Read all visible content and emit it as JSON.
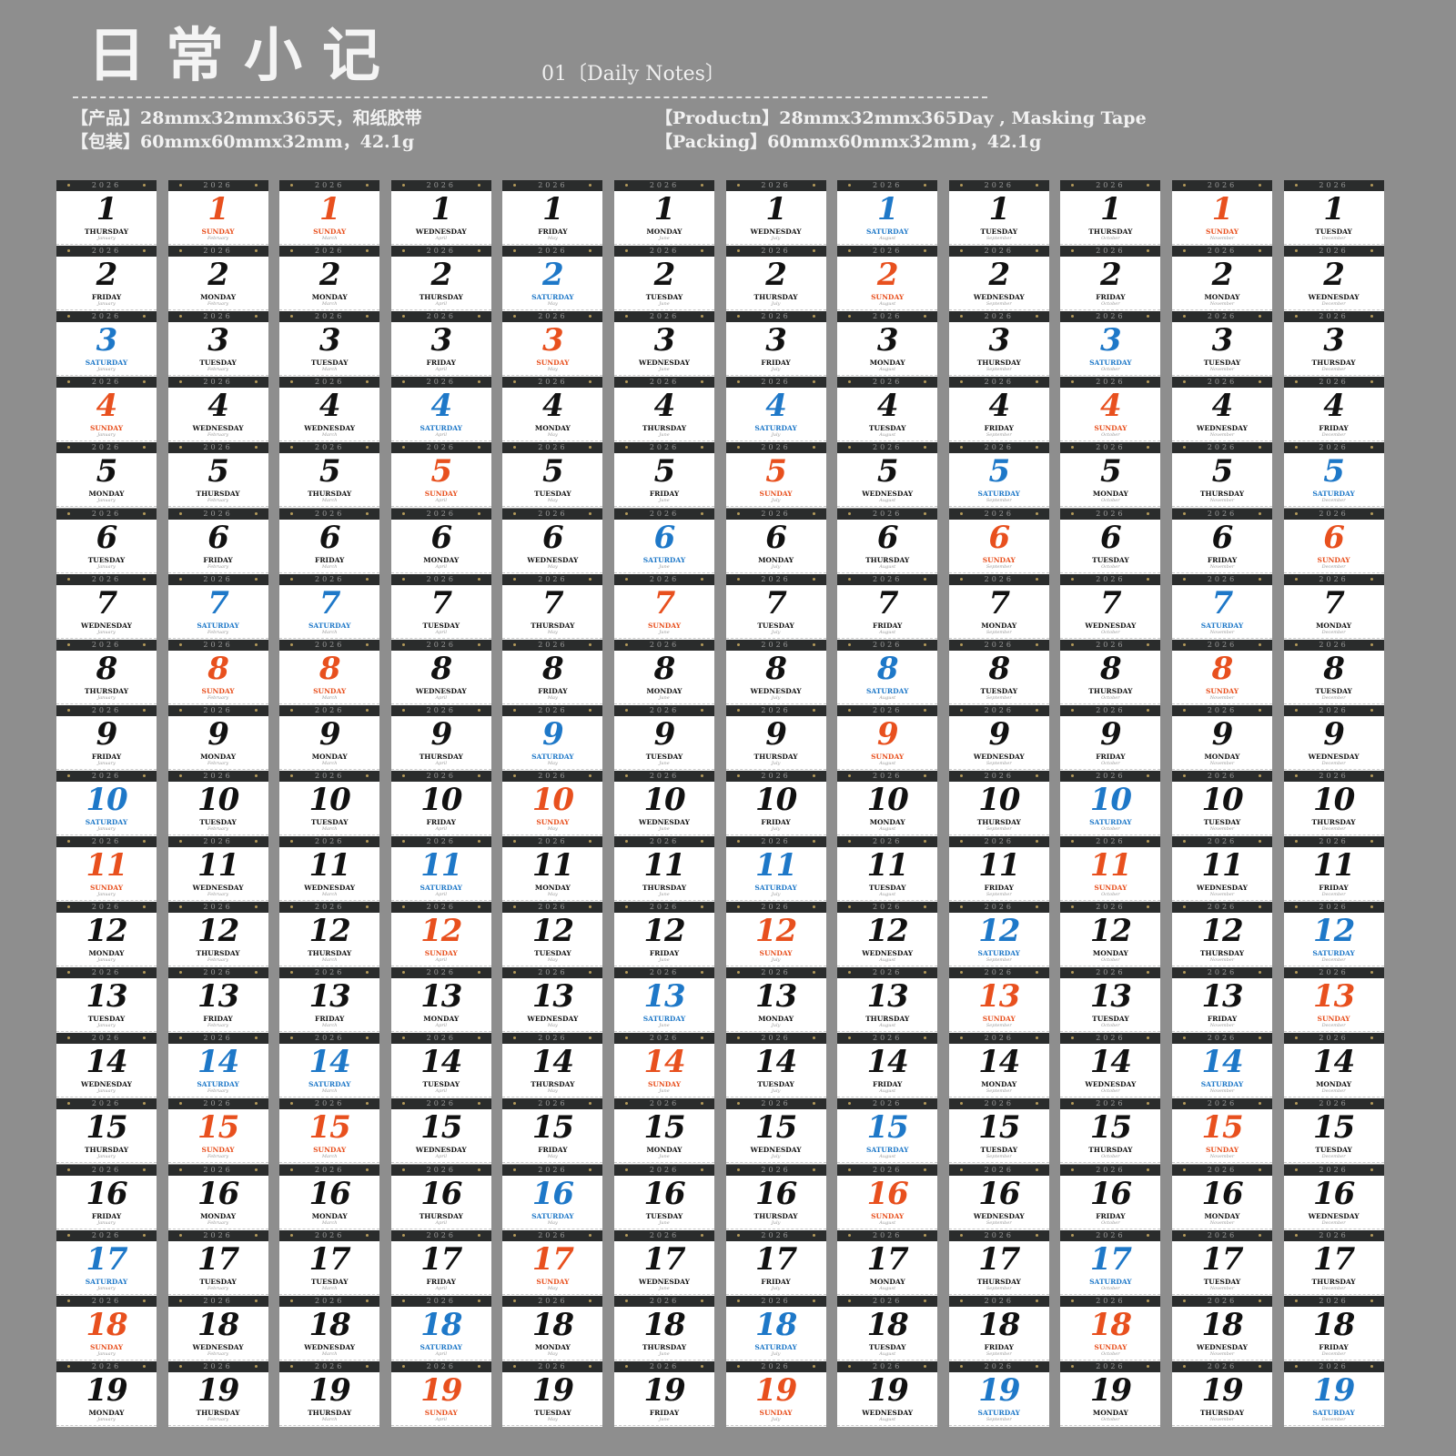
{
  "header": {
    "title": "日常小记",
    "subtitle": "01〔Daily Notes〕",
    "product_cn": "【产品】28mmx32mmx365天，和纸胶带",
    "packing_cn": "【包装】60mmx60mmx32mm，42.1g",
    "product_en": "【Productn】28mmx32mmx365Day , Masking Tape",
    "packing_en": "【Packing】60mmx60mmx32mm，42.1g"
  },
  "colors": {
    "background": "#8e8e8e",
    "sunday": "#e8501e",
    "saturday": "#1e78c8",
    "weekday": "#111111",
    "tile_header": "#2a2c2c"
  },
  "calendar": {
    "year": "2026",
    "day_numbers": [
      "1",
      "2",
      "3",
      "4",
      "5",
      "6",
      "7",
      "8",
      "9",
      "10",
      "11",
      "12",
      "13",
      "14",
      "15",
      "16",
      "17",
      "18",
      "19"
    ],
    "months": [
      {
        "name": "January",
        "weekdays": [
          "THURSDAY",
          "FRIDAY",
          "SATURDAY",
          "SUNDAY",
          "MONDAY",
          "TUESDAY",
          "WEDNESDAY",
          "THURSDAY",
          "FRIDAY",
          "SATURDAY",
          "SUNDAY",
          "MONDAY",
          "TUESDAY",
          "WEDNESDAY",
          "THURSDAY",
          "FRIDAY",
          "SATURDAY",
          "SUNDAY",
          "MONDAY"
        ]
      },
      {
        "name": "February",
        "weekdays": [
          "SUNDAY",
          "MONDAY",
          "TUESDAY",
          "WEDNESDAY",
          "THURSDAY",
          "FRIDAY",
          "SATURDAY",
          "SUNDAY",
          "MONDAY",
          "TUESDAY",
          "WEDNESDAY",
          "THURSDAY",
          "FRIDAY",
          "SATURDAY",
          "SUNDAY",
          "MONDAY",
          "TUESDAY",
          "WEDNESDAY",
          "THURSDAY"
        ]
      },
      {
        "name": "March",
        "weekdays": [
          "SUNDAY",
          "MONDAY",
          "TUESDAY",
          "WEDNESDAY",
          "THURSDAY",
          "FRIDAY",
          "SATURDAY",
          "SUNDAY",
          "MONDAY",
          "TUESDAY",
          "WEDNESDAY",
          "THURSDAY",
          "FRIDAY",
          "SATURDAY",
          "SUNDAY",
          "MONDAY",
          "TUESDAY",
          "WEDNESDAY",
          "THURSDAY"
        ]
      },
      {
        "name": "April",
        "weekdays": [
          "WEDNESDAY",
          "THURSDAY",
          "FRIDAY",
          "SATURDAY",
          "SUNDAY",
          "MONDAY",
          "TUESDAY",
          "WEDNESDAY",
          "THURSDAY",
          "FRIDAY",
          "SATURDAY",
          "SUNDAY",
          "MONDAY",
          "TUESDAY",
          "WEDNESDAY",
          "THURSDAY",
          "FRIDAY",
          "SATURDAY",
          "SUNDAY"
        ]
      },
      {
        "name": "May",
        "weekdays": [
          "FRIDAY",
          "SATURDAY",
          "SUNDAY",
          "MONDAY",
          "TUESDAY",
          "WEDNESDAY",
          "THURSDAY",
          "FRIDAY",
          "SATURDAY",
          "SUNDAY",
          "MONDAY",
          "TUESDAY",
          "WEDNESDAY",
          "THURSDAY",
          "FRIDAY",
          "SATURDAY",
          "SUNDAY",
          "MONDAY",
          "TUESDAY"
        ]
      },
      {
        "name": "June",
        "weekdays": [
          "MONDAY",
          "TUESDAY",
          "WEDNESDAY",
          "THURSDAY",
          "FRIDAY",
          "SATURDAY",
          "SUNDAY",
          "MONDAY",
          "TUESDAY",
          "WEDNESDAY",
          "THURSDAY",
          "FRIDAY",
          "SATURDAY",
          "SUNDAY",
          "MONDAY",
          "TUESDAY",
          "WEDNESDAY",
          "THURSDAY",
          "FRIDAY"
        ]
      },
      {
        "name": "July",
        "weekdays": [
          "WEDNESDAY",
          "THURSDAY",
          "FRIDAY",
          "SATURDAY",
          "SUNDAY",
          "MONDAY",
          "TUESDAY",
          "WEDNESDAY",
          "THURSDAY",
          "FRIDAY",
          "SATURDAY",
          "SUNDAY",
          "MONDAY",
          "TUESDAY",
          "WEDNESDAY",
          "THURSDAY",
          "FRIDAY",
          "SATURDAY",
          "SUNDAY"
        ]
      },
      {
        "name": "August",
        "weekdays": [
          "SATURDAY",
          "SUNDAY",
          "MONDAY",
          "TUESDAY",
          "WEDNESDAY",
          "THURSDAY",
          "FRIDAY",
          "SATURDAY",
          "SUNDAY",
          "MONDAY",
          "TUESDAY",
          "WEDNESDAY",
          "THURSDAY",
          "FRIDAY",
          "SATURDAY",
          "SUNDAY",
          "MONDAY",
          "TUESDAY",
          "WEDNESDAY"
        ]
      },
      {
        "name": "September",
        "weekdays": [
          "TUESDAY",
          "WEDNESDAY",
          "THURSDAY",
          "FRIDAY",
          "SATURDAY",
          "SUNDAY",
          "MONDAY",
          "TUESDAY",
          "WEDNESDAY",
          "THURSDAY",
          "FRIDAY",
          "SATURDAY",
          "SUNDAY",
          "MONDAY",
          "TUESDAY",
          "WEDNESDAY",
          "THURSDAY",
          "FRIDAY",
          "SATURDAY"
        ]
      },
      {
        "name": "October",
        "weekdays": [
          "THURSDAY",
          "FRIDAY",
          "SATURDAY",
          "SUNDAY",
          "MONDAY",
          "TUESDAY",
          "WEDNESDAY",
          "THURSDAY",
          "FRIDAY",
          "SATURDAY",
          "SUNDAY",
          "MONDAY",
          "TUESDAY",
          "WEDNESDAY",
          "THURSDAY",
          "FRIDAY",
          "SATURDAY",
          "SUNDAY",
          "MONDAY"
        ]
      },
      {
        "name": "November",
        "weekdays": [
          "SUNDAY",
          "MONDAY",
          "TUESDAY",
          "WEDNESDAY",
          "THURSDAY",
          "FRIDAY",
          "SATURDAY",
          "SUNDAY",
          "MONDAY",
          "TUESDAY",
          "WEDNESDAY",
          "THURSDAY",
          "FRIDAY",
          "SATURDAY",
          "SUNDAY",
          "MONDAY",
          "TUESDAY",
          "WEDNESDAY",
          "THURSDAY"
        ]
      },
      {
        "name": "December",
        "weekdays": [
          "TUESDAY",
          "WEDNESDAY",
          "THURSDAY",
          "FRIDAY",
          "SATURDAY",
          "SUNDAY",
          "MONDAY",
          "TUESDAY",
          "WEDNESDAY",
          "THURSDAY",
          "FRIDAY",
          "SATURDAY",
          "SUNDAY",
          "MONDAY",
          "TUESDAY",
          "WEDNESDAY",
          "THURSDAY",
          "FRIDAY",
          "SATURDAY"
        ]
      }
    ]
  }
}
